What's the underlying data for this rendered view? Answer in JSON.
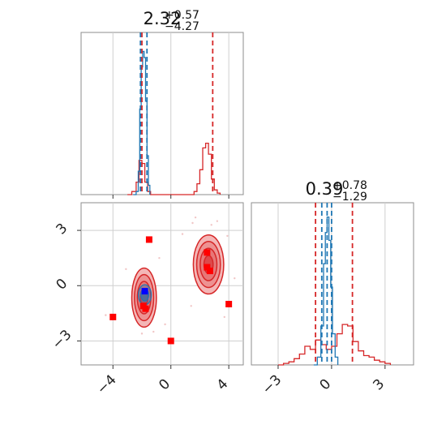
{
  "colors": {
    "red": "#d62728",
    "blue": "#1f77b4",
    "marker_red": "#ff0000",
    "marker_blue": "#0000ff",
    "red_fill": "#f4b6b6"
  },
  "chart_data": [
    {
      "type": "histogram",
      "panel": "top-left",
      "parameter_index": 0,
      "title": {
        "median": "2.32",
        "plus": "+0.57",
        "minus": "−4.27"
      },
      "xlim": [
        -6.2,
        5.0
      ],
      "x_ticks": [
        -4,
        0,
        4
      ],
      "grid": true,
      "series": [
        {
          "color": "red",
          "bins": [
            [
              -3.0,
              0.0
            ],
            [
              -2.7,
              0.02
            ],
            [
              -2.4,
              0.08
            ],
            [
              -2.2,
              0.22
            ],
            [
              -2.0,
              0.2
            ],
            [
              -1.8,
              0.08
            ],
            [
              -1.6,
              0.02
            ],
            [
              -1.4,
              0.0
            ],
            [
              1.4,
              0.0
            ],
            [
              1.6,
              0.02
            ],
            [
              1.8,
              0.07
            ],
            [
              2.0,
              0.16
            ],
            [
              2.2,
              0.3
            ],
            [
              2.4,
              0.33
            ],
            [
              2.6,
              0.26
            ],
            [
              2.8,
              0.1
            ],
            [
              3.0,
              0.03
            ],
            [
              3.2,
              0.01
            ],
            [
              3.4,
              0.0
            ]
          ],
          "quantile_lines": [
            -2.0,
            2.89
          ]
        },
        {
          "color": "blue",
          "bins": [
            [
              -2.6,
              0.0
            ],
            [
              -2.4,
              0.02
            ],
            [
              -2.25,
              0.15
            ],
            [
              -2.15,
              0.55
            ],
            [
              -2.05,
              0.82
            ],
            [
              -1.95,
              0.92
            ],
            [
              -1.85,
              0.88
            ],
            [
              -1.75,
              0.6
            ],
            [
              -1.65,
              0.25
            ],
            [
              -1.55,
              0.06
            ],
            [
              -1.45,
              0.0
            ]
          ],
          "quantile_lines": [
            -2.1,
            -1.65
          ]
        }
      ]
    },
    {
      "type": "histogram",
      "panel": "bottom-right",
      "parameter_index": 1,
      "title": {
        "median": "0.39",
        "plus": "+0.78",
        "minus": "−1.29"
      },
      "xlim": [
        -4.5,
        4.6
      ],
      "x_ticks": [
        -3,
        0,
        3
      ],
      "grid": true,
      "series": [
        {
          "color": "red",
          "bins": [
            [
              -3.0,
              0.0
            ],
            [
              -2.7,
              0.01
            ],
            [
              -2.4,
              0.02
            ],
            [
              -2.1,
              0.04
            ],
            [
              -1.8,
              0.07
            ],
            [
              -1.5,
              0.12
            ],
            [
              -1.2,
              0.1
            ],
            [
              -0.9,
              0.16
            ],
            [
              -0.6,
              0.13
            ],
            [
              -0.3,
              0.1
            ],
            [
              0.0,
              0.12
            ],
            [
              0.3,
              0.2
            ],
            [
              0.6,
              0.26
            ],
            [
              0.9,
              0.25
            ],
            [
              1.2,
              0.15
            ],
            [
              1.5,
              0.09
            ],
            [
              1.8,
              0.06
            ],
            [
              2.1,
              0.05
            ],
            [
              2.4,
              0.03
            ],
            [
              2.7,
              0.02
            ],
            [
              3.0,
              0.01
            ],
            [
              3.3,
              0.0
            ]
          ],
          "quantile_lines": [
            -0.9,
            1.17
          ]
        },
        {
          "color": "blue",
          "bins": [
            [
              -1.0,
              0.0
            ],
            [
              -0.8,
              0.05
            ],
            [
              -0.6,
              0.25
            ],
            [
              -0.45,
              0.65
            ],
            [
              -0.35,
              0.85
            ],
            [
              -0.25,
              0.95
            ],
            [
              -0.15,
              0.8
            ],
            [
              -0.05,
              0.5
            ],
            [
              0.05,
              0.2
            ],
            [
              0.2,
              0.05
            ],
            [
              0.35,
              0.0
            ]
          ],
          "quantile_lines": [
            -0.55,
            -0.25,
            0.0
          ]
        }
      ]
    },
    {
      "type": "contour",
      "panel": "bottom-left",
      "xlim": [
        -6.2,
        5.0
      ],
      "ylim": [
        -4.3,
        4.5
      ],
      "x_ticks": [
        -4,
        0,
        4
      ],
      "y_ticks": [
        3,
        0,
        -3
      ],
      "grid": true,
      "red_blobs": [
        {
          "cx": -1.85,
          "cy": -0.65,
          "rx": 0.85,
          "ry": 1.6
        },
        {
          "cx": 2.6,
          "cy": 1.15,
          "rx": 1.05,
          "ry": 1.6
        }
      ],
      "blue_blobs": [
        {
          "cx": -1.8,
          "cy": -0.5,
          "rx": 0.45,
          "ry": 0.55
        }
      ],
      "red_markers": [
        [
          -1.5,
          2.5
        ],
        [
          2.5,
          1.8
        ],
        [
          2.5,
          1.0
        ],
        [
          2.7,
          0.8
        ],
        [
          -4.0,
          -1.7
        ],
        [
          4.0,
          -1.0
        ],
        [
          0.0,
          -3.0
        ],
        [
          -1.9,
          -1.1
        ],
        [
          -1.75,
          -1.25
        ]
      ],
      "blue_markers": [
        [
          -1.8,
          -0.3
        ]
      ],
      "scatter_points": [
        [
          1.7,
          3.7
        ],
        [
          2.8,
          3.3
        ],
        [
          3.2,
          3.5
        ],
        [
          3.9,
          2.7
        ],
        [
          -4.5,
          -1.6
        ],
        [
          -2.0,
          -2.6
        ],
        [
          -1.2,
          -2.5
        ],
        [
          -0.4,
          -2.1
        ],
        [
          4.4,
          0.4
        ],
        [
          1.4,
          -1.1
        ],
        [
          1.5,
          3.4
        ],
        [
          0.8,
          2.8
        ],
        [
          -3.1,
          0.9
        ],
        [
          3.7,
          -1.7
        ],
        [
          -0.8,
          1.5
        ],
        [
          2.1,
          2.2
        ]
      ]
    }
  ]
}
